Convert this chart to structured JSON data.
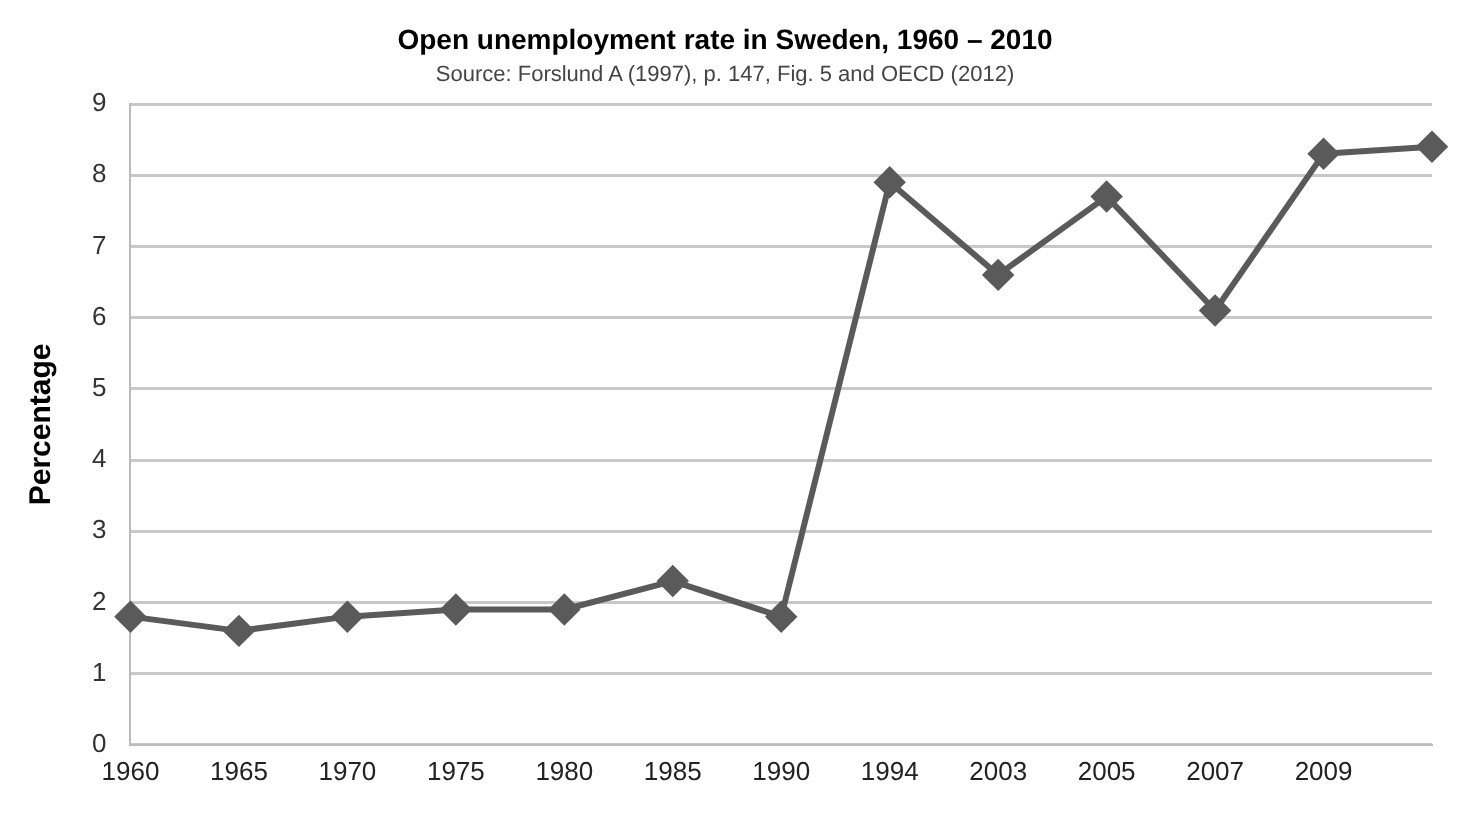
{
  "chart_data": {
    "type": "line",
    "title": "Open unemployment rate in Sweden, 1960 – 2010",
    "subtitle": "Source: Forslund A (1997), p. 147, Fig. 5 and OECD (2012)",
    "ylabel": "Percentage",
    "categories": [
      "1960",
      "1965",
      "1970",
      "1975",
      "1980",
      "1985",
      "1990",
      "1994",
      "2003",
      "2005",
      "2007",
      "2009",
      null
    ],
    "series": [
      {
        "color": "#5a5a5a",
        "values": [
          1.8,
          1.6,
          1.8,
          1.9,
          1.9,
          2.3,
          1.8,
          7.9,
          6.6,
          7.7,
          6.1,
          8.3,
          8.4
        ]
      }
    ],
    "ylim": [
      0,
      9
    ],
    "yticks": [
      0,
      1,
      2,
      3,
      4,
      5,
      6,
      7,
      8,
      9
    ],
    "grid": "y",
    "legend": false,
    "marker": "diamond",
    "line_style": "solid"
  }
}
